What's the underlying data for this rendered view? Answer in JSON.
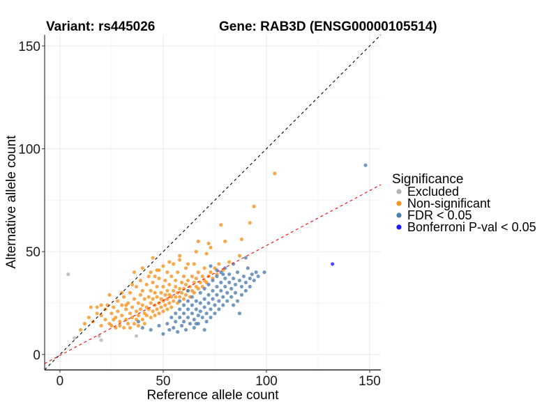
{
  "chart_data": {
    "type": "scatter",
    "title_left": "Variant: rs445026",
    "title_right": "Gene: RAB3D (ENSG00000105514)",
    "xlabel": "Reference allele count",
    "ylabel": "Alternative allele count",
    "xlim": [
      -7.4,
      155.4
    ],
    "ylim": [
      -7.5,
      155.4
    ],
    "xticks": [
      0,
      50,
      100,
      150
    ],
    "yticks": [
      0,
      50,
      100,
      150
    ],
    "grid": true,
    "legend": {
      "title": "Significance",
      "placement": "right",
      "entries": [
        {
          "label": "Excluded",
          "color": "#b3b3b3"
        },
        {
          "label": "Non-significant",
          "color": "#f7931e"
        },
        {
          "label": "FDR < 0.05",
          "color": "#4f7fb0"
        },
        {
          "label": "Bonferroni P-val < 0.05",
          "color": "#1a1aff"
        }
      ]
    },
    "reference_lines": [
      {
        "name": "identity",
        "slope": 1,
        "intercept": 0,
        "color": "#000000",
        "style": "dashed"
      },
      {
        "name": "fit",
        "slope": 0.534,
        "intercept": -0.45,
        "color": "#ff0000",
        "style": "dashed"
      }
    ],
    "series": [
      {
        "name": "Excluded",
        "color": "#b3b3b3",
        "points": [
          [
            4,
            39
          ],
          [
            7,
            8
          ],
          [
            19,
            9
          ],
          [
            20,
            7
          ],
          [
            37,
            9
          ]
        ]
      },
      {
        "name": "Non-significant",
        "color": "#f7931e",
        "points": [
          [
            10,
            12
          ],
          [
            12,
            15
          ],
          [
            14,
            18
          ],
          [
            15,
            23
          ],
          [
            16,
            16
          ],
          [
            18,
            20
          ],
          [
            20,
            14
          ],
          [
            20,
            19
          ],
          [
            22,
            22
          ],
          [
            22,
            17
          ],
          [
            23,
            24
          ],
          [
            24,
            15
          ],
          [
            25,
            20
          ],
          [
            25,
            14
          ],
          [
            26,
            23
          ],
          [
            27,
            18
          ],
          [
            27,
            13
          ],
          [
            28,
            26
          ],
          [
            28,
            21
          ],
          [
            29,
            16
          ],
          [
            29,
            14
          ],
          [
            30,
            24
          ],
          [
            30,
            19
          ],
          [
            31,
            13
          ],
          [
            31,
            28
          ],
          [
            32,
            22
          ],
          [
            32,
            17
          ],
          [
            33,
            15
          ],
          [
            33,
            25
          ],
          [
            34,
            20
          ],
          [
            34,
            30
          ],
          [
            34,
            13
          ],
          [
            35,
            18
          ],
          [
            35,
            23
          ],
          [
            36,
            27
          ],
          [
            36,
            15
          ],
          [
            36,
            40
          ],
          [
            37,
            21
          ],
          [
            37,
            33
          ],
          [
            37,
            17
          ],
          [
            38,
            25
          ],
          [
            38,
            19
          ],
          [
            38,
            14
          ],
          [
            39,
            29
          ],
          [
            39,
            22
          ],
          [
            39,
            36
          ],
          [
            40,
            17
          ],
          [
            40,
            24
          ],
          [
            40,
            31
          ],
          [
            41,
            20
          ],
          [
            41,
            27
          ],
          [
            41,
            15
          ],
          [
            42,
            23
          ],
          [
            42,
            34
          ],
          [
            42,
            19
          ],
          [
            43,
            28
          ],
          [
            43,
            22
          ],
          [
            43,
            38
          ],
          [
            44,
            25
          ],
          [
            44,
            18
          ],
          [
            44,
            31
          ],
          [
            45,
            21
          ],
          [
            45,
            27
          ],
          [
            45,
            35
          ],
          [
            45,
            47
          ],
          [
            46,
            24
          ],
          [
            46,
            30
          ],
          [
            46,
            19
          ],
          [
            47,
            22
          ],
          [
            47,
            28
          ],
          [
            47,
            33
          ],
          [
            47,
            41
          ],
          [
            48,
            25
          ],
          [
            48,
            20
          ],
          [
            48,
            37
          ],
          [
            49,
            30
          ],
          [
            49,
            23
          ],
          [
            49,
            27
          ],
          [
            50,
            33
          ],
          [
            50,
            26
          ],
          [
            50,
            21
          ],
          [
            50,
            43
          ],
          [
            51,
            29
          ],
          [
            51,
            24
          ],
          [
            51,
            36
          ],
          [
            52,
            27
          ],
          [
            52,
            31
          ],
          [
            52,
            22
          ],
          [
            52,
            40
          ],
          [
            53,
            25
          ],
          [
            53,
            34
          ],
          [
            53,
            29
          ],
          [
            54,
            28
          ],
          [
            54,
            38
          ],
          [
            54,
            23
          ],
          [
            55,
            31
          ],
          [
            55,
            26
          ],
          [
            55,
            44
          ],
          [
            56,
            33
          ],
          [
            56,
            28
          ],
          [
            56,
            36
          ],
          [
            57,
            30
          ],
          [
            57,
            25
          ],
          [
            57,
            40
          ],
          [
            58,
            32
          ],
          [
            58,
            28
          ],
          [
            58,
            46
          ],
          [
            59,
            35
          ],
          [
            59,
            30
          ],
          [
            60,
            27
          ],
          [
            60,
            38
          ],
          [
            60,
            32
          ],
          [
            61,
            34
          ],
          [
            61,
            29
          ],
          [
            61,
            42
          ],
          [
            62,
            31
          ],
          [
            62,
            36
          ],
          [
            63,
            33
          ],
          [
            63,
            28
          ],
          [
            64,
            38
          ],
          [
            64,
            31
          ],
          [
            65,
            35
          ],
          [
            65,
            30
          ],
          [
            65,
            44
          ],
          [
            66,
            33
          ],
          [
            66,
            37
          ],
          [
            67,
            40
          ],
          [
            67,
            32
          ],
          [
            67,
            55
          ],
          [
            68,
            35
          ],
          [
            69,
            38
          ],
          [
            69,
            33
          ],
          [
            70,
            36
          ],
          [
            70,
            42
          ],
          [
            71,
            35
          ],
          [
            71,
            49
          ],
          [
            72,
            38
          ],
          [
            73,
            40
          ],
          [
            73,
            52
          ],
          [
            74,
            37
          ],
          [
            75,
            42
          ],
          [
            76,
            39
          ],
          [
            77,
            44
          ],
          [
            78,
            63
          ],
          [
            79,
            41
          ],
          [
            80,
            55
          ],
          [
            82,
            45
          ],
          [
            87,
            48
          ],
          [
            88,
            56
          ],
          [
            92,
            64
          ],
          [
            94,
            72
          ],
          [
            104,
            88
          ],
          [
            58,
            48
          ],
          [
            66,
            50
          ],
          [
            72,
            54
          ],
          [
            48,
            41
          ],
          [
            44,
            40
          ],
          [
            30,
            30
          ],
          [
            20,
            24
          ],
          [
            24,
            29
          ],
          [
            18,
            23
          ],
          [
            35,
            34
          ],
          [
            53,
            45
          ],
          [
            62,
            44
          ],
          [
            40,
            42
          ],
          [
            26,
            17
          ],
          [
            32,
            24
          ],
          [
            46,
            38
          ]
        ]
      },
      {
        "name": "FDR < 0.05",
        "color": "#4f7fb0",
        "points": [
          [
            38,
            16
          ],
          [
            40,
            13
          ],
          [
            44,
            12
          ],
          [
            48,
            14
          ],
          [
            50,
            10
          ],
          [
            52,
            15
          ],
          [
            53,
            12
          ],
          [
            54,
            18
          ],
          [
            55,
            13
          ],
          [
            56,
            20
          ],
          [
            56,
            16
          ],
          [
            57,
            11
          ],
          [
            58,
            22
          ],
          [
            58,
            18
          ],
          [
            59,
            14
          ],
          [
            60,
            24
          ],
          [
            60,
            20
          ],
          [
            60,
            16
          ],
          [
            61,
            12
          ],
          [
            62,
            26
          ],
          [
            62,
            22
          ],
          [
            62,
            18
          ],
          [
            63,
            15
          ],
          [
            64,
            28
          ],
          [
            64,
            24
          ],
          [
            64,
            20
          ],
          [
            65,
            17
          ],
          [
            65,
            13
          ],
          [
            66,
            26
          ],
          [
            66,
            22
          ],
          [
            67,
            19
          ],
          [
            67,
            15
          ],
          [
            68,
            30
          ],
          [
            68,
            25
          ],
          [
            68,
            21
          ],
          [
            69,
            18
          ],
          [
            70,
            32
          ],
          [
            70,
            27
          ],
          [
            70,
            23
          ],
          [
            71,
            20
          ],
          [
            71,
            16
          ],
          [
            72,
            34
          ],
          [
            72,
            29
          ],
          [
            72,
            25
          ],
          [
            73,
            22
          ],
          [
            73,
            18
          ],
          [
            74,
            36
          ],
          [
            74,
            31
          ],
          [
            74,
            27
          ],
          [
            75,
            24
          ],
          [
            75,
            20
          ],
          [
            76,
            38
          ],
          [
            76,
            33
          ],
          [
            76,
            29
          ],
          [
            77,
            26
          ],
          [
            77,
            22
          ],
          [
            78,
            40
          ],
          [
            78,
            35
          ],
          [
            78,
            31
          ],
          [
            79,
            28
          ],
          [
            79,
            24
          ],
          [
            80,
            42
          ],
          [
            80,
            37
          ],
          [
            80,
            33
          ],
          [
            81,
            30
          ],
          [
            81,
            26
          ],
          [
            82,
            39
          ],
          [
            82,
            35
          ],
          [
            83,
            32
          ],
          [
            83,
            28
          ],
          [
            84,
            37
          ],
          [
            84,
            24
          ],
          [
            85,
            34
          ],
          [
            85,
            30
          ],
          [
            86,
            40
          ],
          [
            86,
            26
          ],
          [
            87,
            36
          ],
          [
            88,
            33
          ],
          [
            88,
            29
          ],
          [
            89,
            38
          ],
          [
            90,
            35
          ],
          [
            90,
            31
          ],
          [
            91,
            42
          ],
          [
            92,
            37
          ],
          [
            92,
            33
          ],
          [
            93,
            39
          ],
          [
            94,
            36
          ],
          [
            95,
            40
          ],
          [
            96,
            38
          ],
          [
            73,
            43
          ],
          [
            76,
            41
          ],
          [
            79,
            39
          ],
          [
            84,
            44
          ],
          [
            90,
            47
          ],
          [
            87,
            20
          ],
          [
            99,
            40
          ],
          [
            66,
            15
          ],
          [
            58,
            26
          ],
          [
            70,
            12
          ],
          [
            62,
            31
          ],
          [
            148,
            92
          ]
        ]
      },
      {
        "name": "Bonferroni P-val < 0.05",
        "color": "#1a1aff",
        "points": [
          [
            132,
            44
          ]
        ]
      }
    ]
  }
}
